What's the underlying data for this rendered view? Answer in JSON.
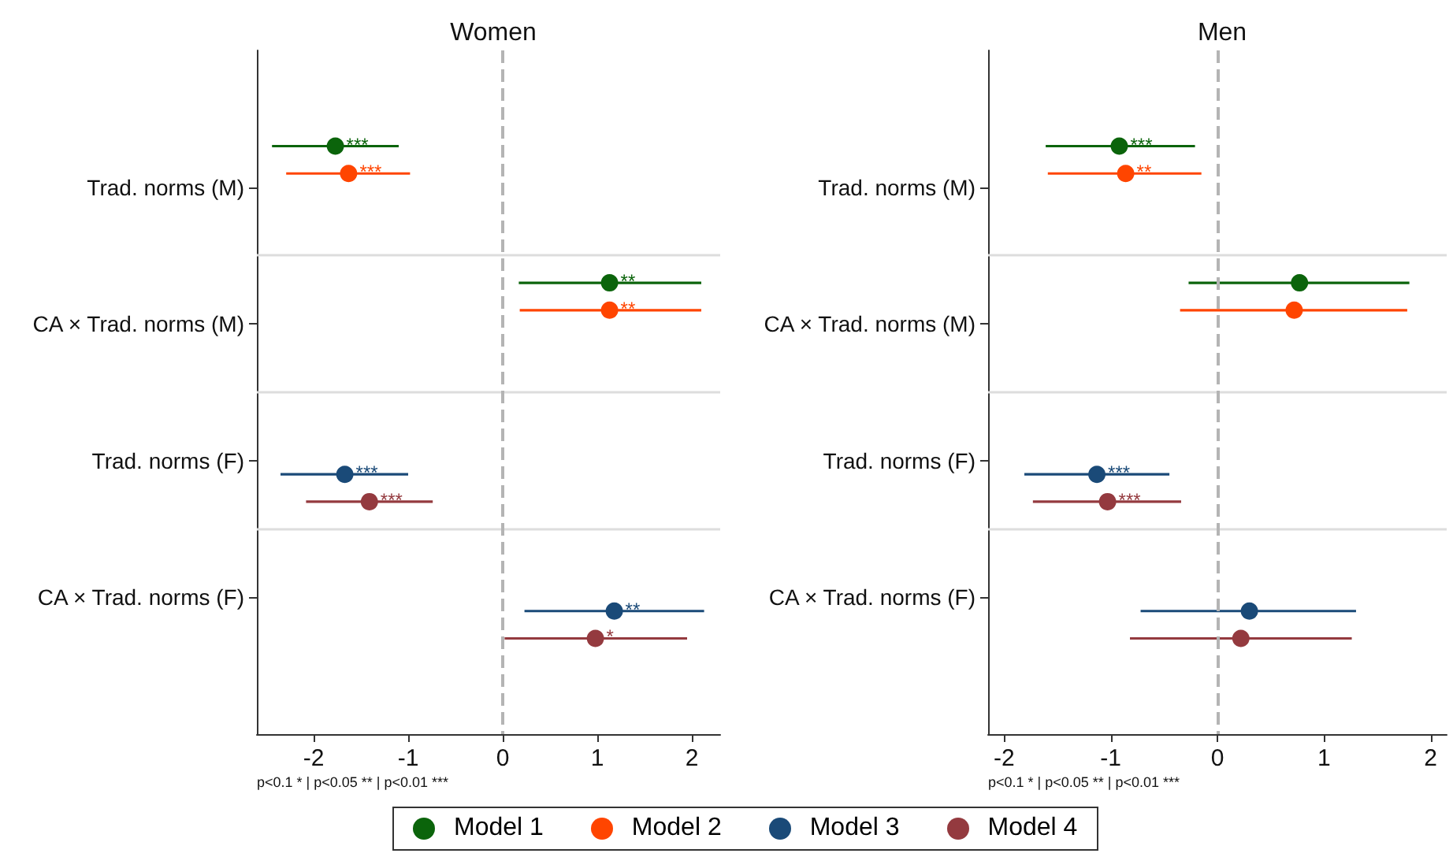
{
  "chart_data": [
    {
      "type": "scatter",
      "title": "Women",
      "orientation": "horizontal",
      "categories": [
        "Trad. norms (M)",
        "CA × Trad. norms (M)",
        "Trad. norms (F)",
        "CA × Trad. norms (F)"
      ],
      "xlim": [
        -2.6,
        2.3
      ],
      "xticks": [
        -2,
        -1,
        0,
        1,
        2
      ],
      "grid": "y",
      "marker": "circle",
      "legend": "bottom",
      "ref_lines": [
        {
          "axis": "x",
          "value": 0,
          "color": "#b4b4b4",
          "line_style": "dashed"
        }
      ],
      "annotations": [
        "p<0.1 * | p<0.05 ** | p<0.01 ***"
      ],
      "series": [
        {
          "name": "Model 1",
          "color": "#0b640b",
          "values": [
            -1.77,
            1.13,
            null,
            null
          ],
          "errors": [
            [
              -2.44,
              -1.1
            ],
            [
              0.17,
              2.1
            ],
            null,
            null
          ],
          "value_labels": [
            "***",
            "**",
            null,
            null
          ]
        },
        {
          "name": "Model 2",
          "color": "#ff4500",
          "values": [
            -1.63,
            1.13,
            null,
            null
          ],
          "errors": [
            [
              -2.29,
              -0.98
            ],
            [
              0.18,
              2.1
            ],
            null,
            null
          ],
          "value_labels": [
            "***",
            "**",
            null,
            null
          ]
        },
        {
          "name": "Model 3",
          "color": "#1a4a78",
          "values": [
            null,
            null,
            -1.67,
            1.18
          ],
          "errors": [
            null,
            null,
            [
              -2.35,
              -1.0
            ],
            [
              0.23,
              2.13
            ]
          ],
          "value_labels": [
            null,
            null,
            "***",
            "**"
          ]
        },
        {
          "name": "Model 4",
          "color": "#943a3f",
          "values": [
            null,
            null,
            -1.41,
            0.98
          ],
          "errors": [
            null,
            null,
            [
              -2.08,
              -0.74
            ],
            [
              0.02,
              1.95
            ]
          ],
          "value_labels": [
            null,
            null,
            "***",
            "*"
          ]
        }
      ]
    },
    {
      "type": "scatter",
      "title": "Men",
      "orientation": "horizontal",
      "categories": [
        "Trad. norms (M)",
        "CA × Trad. norms (M)",
        "Trad. norms (F)",
        "CA × Trad. norms (F)"
      ],
      "xlim": [
        -2.15,
        2.15
      ],
      "xticks": [
        -2,
        -1,
        0,
        1,
        2
      ],
      "grid": "y",
      "marker": "circle",
      "ref_lines": [
        {
          "axis": "x",
          "value": 0,
          "color": "#b4b4b4",
          "line_style": "dashed"
        }
      ],
      "annotations": [
        "p<0.1 * | p<0.05 ** | p<0.01 ***"
      ],
      "series": [
        {
          "color": "#0b640b",
          "values": [
            -0.92,
            0.77,
            null,
            null
          ],
          "errors": [
            [
              -1.61,
              -0.21
            ],
            [
              -0.27,
              1.8
            ],
            null,
            null
          ],
          "value_labels": [
            "***",
            null,
            null,
            null
          ]
        },
        {
          "color": "#ff4500",
          "values": [
            -0.86,
            0.72,
            null,
            null
          ],
          "errors": [
            [
              -1.59,
              -0.15
            ],
            [
              -0.35,
              1.78
            ],
            null,
            null
          ],
          "value_labels": [
            "**",
            null,
            null,
            null
          ]
        },
        {
          "color": "#1a4a78",
          "values": [
            null,
            null,
            -1.13,
            0.3
          ],
          "errors": [
            null,
            null,
            [
              -1.81,
              -0.45
            ],
            [
              -0.72,
              1.3
            ]
          ],
          "value_labels": [
            null,
            null,
            "***",
            null
          ]
        },
        {
          "color": "#943a3f",
          "values": [
            null,
            null,
            -1.03,
            0.22
          ],
          "errors": [
            null,
            null,
            [
              -1.73,
              -0.34
            ],
            [
              -0.82,
              1.26
            ]
          ],
          "value_labels": [
            null,
            null,
            "***",
            null
          ]
        }
      ]
    }
  ]
}
